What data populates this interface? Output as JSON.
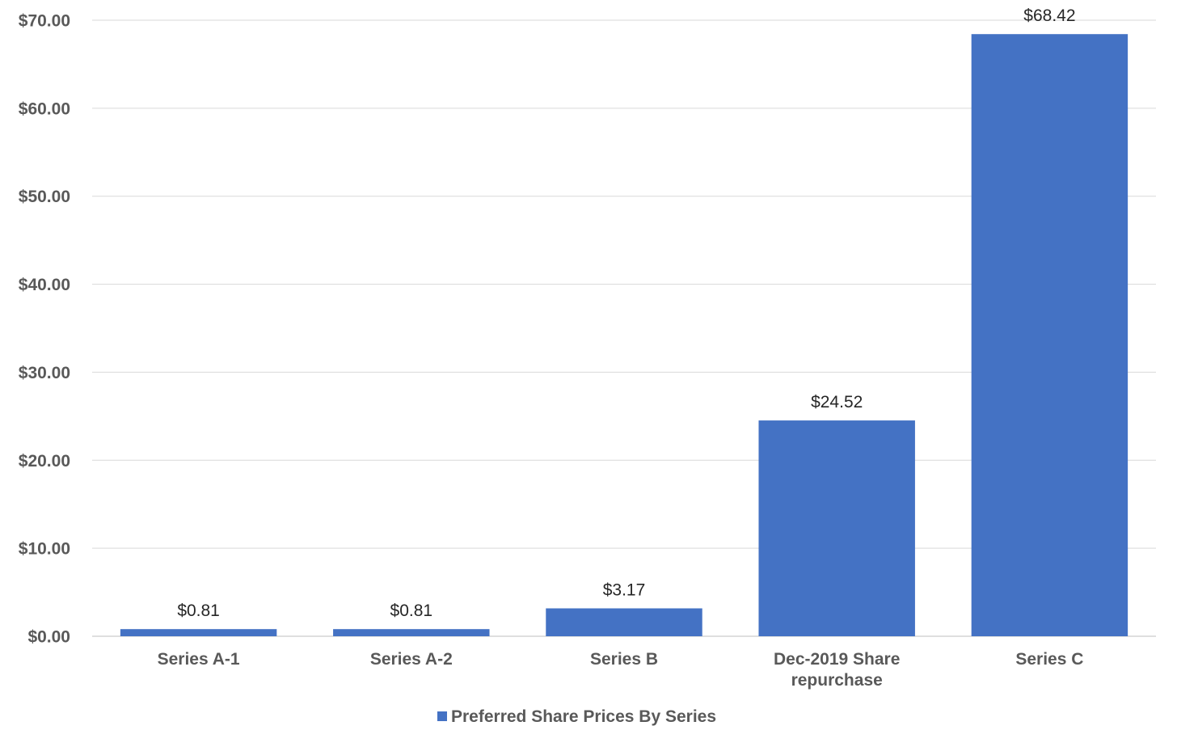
{
  "chart_data": {
    "type": "bar",
    "categories": [
      [
        "Series A-1"
      ],
      [
        "Series A-2"
      ],
      [
        "Series B"
      ],
      [
        "Dec-2019 Share",
        "repurchase"
      ],
      [
        "Series C"
      ]
    ],
    "series": [
      {
        "name": "Preferred Share Prices By Series",
        "values": [
          0.81,
          0.81,
          3.17,
          24.52,
          68.42
        ],
        "data_labels": [
          "$0.81",
          "$0.81",
          "$3.17",
          "$24.52",
          "$68.42"
        ],
        "color": "#4472c4"
      }
    ],
    "yticks": [
      0,
      10,
      20,
      30,
      40,
      50,
      60,
      70
    ],
    "ytick_labels": [
      "$0.00",
      "$10.00",
      "$20.00",
      "$30.00",
      "$40.00",
      "$50.00",
      "$60.00",
      "$70.00"
    ],
    "ylim": [
      0,
      70
    ],
    "grid": true,
    "legend_position": "bottom",
    "title": "",
    "xlabel": "",
    "ylabel": ""
  }
}
